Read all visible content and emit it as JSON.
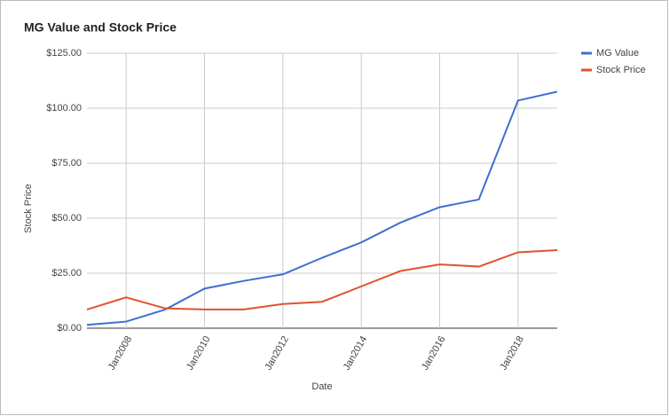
{
  "chart_data": {
    "type": "line",
    "title": "MG Value and Stock Price",
    "x_label": "Date",
    "y_label": "Stock Price",
    "x": [
      2007,
      2008,
      2009,
      2010,
      2011,
      2012,
      2013,
      2014,
      2015,
      2016,
      2017,
      2018,
      2019
    ],
    "series": [
      {
        "name": "MG Value",
        "color": "#3f6fd1",
        "values": [
          1.5,
          3,
          8.5,
          18,
          21.5,
          24.5,
          32,
          39,
          48,
          55,
          58.5,
          103.5,
          107.5
        ]
      },
      {
        "name": "Stock Price",
        "color": "#e0532e",
        "values": [
          8.5,
          14,
          9,
          8.5,
          8.5,
          11,
          12,
          19,
          26,
          29,
          28,
          34.5,
          35.5
        ]
      }
    ],
    "xlim": [
      2007,
      2019
    ],
    "xticks": [
      {
        "value": 2008,
        "label": "Jan2008"
      },
      {
        "value": 2010,
        "label": "Jan2010"
      },
      {
        "value": 2012,
        "label": "Jan2012"
      },
      {
        "value": 2014,
        "label": "Jan2014"
      },
      {
        "value": 2016,
        "label": "Jan2016"
      },
      {
        "value": 2018,
        "label": "Jan2018"
      }
    ],
    "ylim": [
      0,
      125
    ],
    "yticks": [
      {
        "value": 0,
        "label": "$0.00"
      },
      {
        "value": 25,
        "label": "$25.00"
      },
      {
        "value": 50,
        "label": "$50.00"
      },
      {
        "value": 75,
        "label": "$75.00"
      },
      {
        "value": 100,
        "label": "$100.00"
      },
      {
        "value": 125,
        "label": "$125.00"
      }
    ],
    "grid": true,
    "legend": "right"
  }
}
